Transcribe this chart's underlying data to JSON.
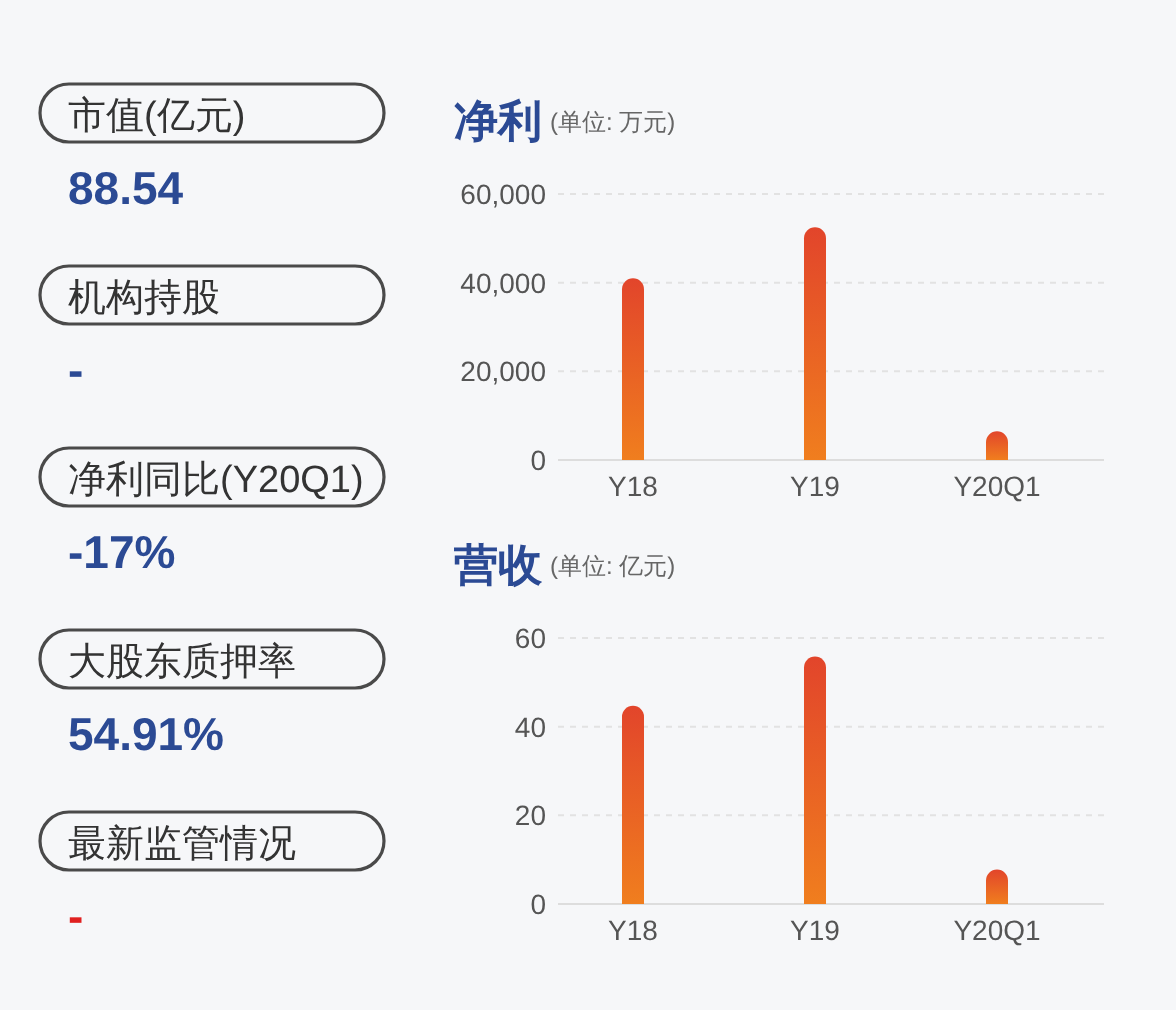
{
  "chart_data": [
    {
      "type": "other",
      "annotations": [
        "市值(亿元)",
        "88.54",
        "机构持股",
        "-",
        "净利同比(Y20Q1)",
        "-17%",
        "大股东质押率",
        "54.91%",
        "最新监管情况",
        "-"
      ],
      "colors": [
        "#333333",
        "#2b4a94",
        "#333333",
        "#2b4a94",
        "#333333",
        "#2b4a94",
        "#333333",
        "#2b4a94",
        "#333333",
        "#e02020"
      ]
    },
    {
      "type": "bar",
      "title": "净利",
      "subtitle": "(单位: 万元)",
      "categories": [
        "Y18",
        "Y19",
        "Y20Q1"
      ],
      "series": [
        {
          "color": "#e2452b",
          "values": [
            41000,
            52500,
            6500
          ]
        }
      ],
      "ylim": [
        0,
        60000
      ],
      "yticks": [
        {
          "value": 0,
          "label": "0"
        },
        {
          "value": 20000,
          "label": "20,000"
        },
        {
          "value": 40000,
          "label": "40,000"
        },
        {
          "value": 60000,
          "label": "60,000"
        }
      ],
      "grid": "y"
    },
    {
      "type": "bar",
      "title": "营收",
      "subtitle": "(单位: 亿元)",
      "categories": [
        "Y18",
        "Y19",
        "Y20Q1"
      ],
      "series": [
        {
          "color": "#e2452b",
          "values": [
            44.7,
            55.8,
            7.8
          ]
        }
      ],
      "ylim": [
        0,
        60
      ],
      "yticks": [
        0,
        20,
        40,
        60
      ],
      "grid": "y"
    }
  ]
}
